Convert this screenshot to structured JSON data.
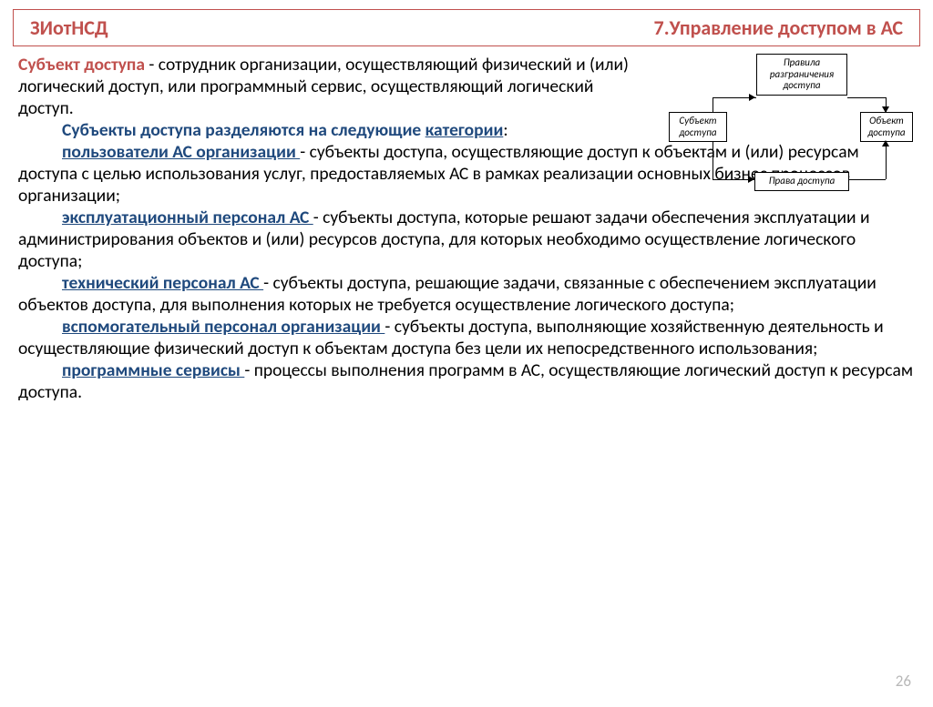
{
  "header": {
    "left": "ЗИотНСД",
    "right": "7.Управление доступом  в АС"
  },
  "diagram": {
    "boxes": {
      "rules": "Правила\nразграничения\nдоступа",
      "subject": "Субъект\nдоступа",
      "object": "Объект\nдоступа",
      "rights": "Права доступа"
    },
    "style": {
      "box_border": "#000000",
      "box_bg": "#ffffff",
      "font_size": 11,
      "arrow_color": "#000000"
    }
  },
  "body": {
    "p1_term": "Субъект доступа",
    "p1_text": " - сотрудник организации, осуществляющий физический и (или) логический доступ, или программный сервис, осуществляющий логический доступ.",
    "p2_lead": "Субъекты доступа разделяются на следующие ",
    "p2_cat": "категории",
    "p2_colon": ":",
    "i1_term": "пользователи АС организации ",
    "i1_text": " - субъекты доступа, осуществляющие доступ к объектам и (или) ресурсам доступа с целью использования услуг, предоставляемых АС в рамках реализации основных бизнес процессов организации;",
    "i2_term": "эксплуатационный персонал АС ",
    "i2_text": " - субъекты доступа, которые решают задачи обеспечения эксплуатации и администрирования объектов и (или) ресурсов доступа, для которых необходимо осуществление логического доступа;",
    "i3_term": "технический персонал АС ",
    "i3_text": " - субъекты доступа, решающие задачи, связанные с обеспечением эксплуатации объектов доступа, для выполнения которых не требуется осуществление логического доступа;",
    "i4_term": "вспомогательный персонал организации ",
    "i4_text": " - субъекты доступа, выполняющие хозяйственную деятельность и осуществляющие физический доступ к объектам доступа без цели их непосредственного использования;",
    "i5_term": "программные сервисы ",
    "i5_text": "- процессы выполнения программ в АС, осуществляющие логический доступ к ресурсам доступа."
  },
  "page_number": "26",
  "colors": {
    "accent_red": "#c0504d",
    "accent_blue": "#1f497d",
    "text": "#000000",
    "pagenum": "#b8b8b8",
    "bg": "#ffffff"
  },
  "typography": {
    "body_pt": 19.5,
    "header_pt": 22,
    "diagram_pt": 11
  }
}
